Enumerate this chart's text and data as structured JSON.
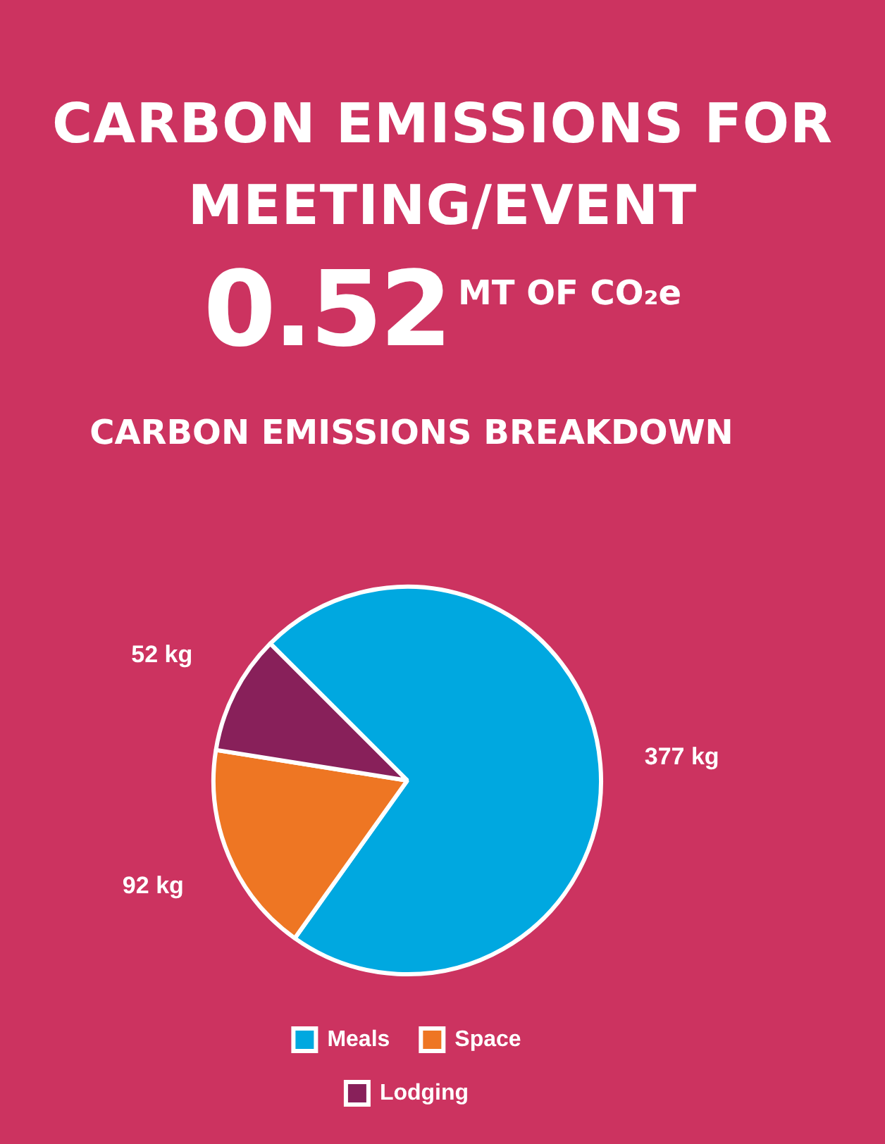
{
  "chart_data": {
    "type": "pie",
    "title": "CARBON EMISSIONS FOR MEETING/EVENT",
    "subtitle": "CARBON EMISSIONS BREAKDOWN",
    "annotations": [
      "0.52",
      "MT OF CO₂e"
    ],
    "categories": [
      "Meals",
      "Space",
      "Lodging"
    ],
    "values": [
      377,
      92,
      52
    ],
    "value_labels": [
      "377 kg",
      "92 kg",
      "52 kg"
    ],
    "colors": [
      "#00a8e0",
      "#ee7623",
      "#88205a"
    ],
    "legend": "bottom"
  }
}
